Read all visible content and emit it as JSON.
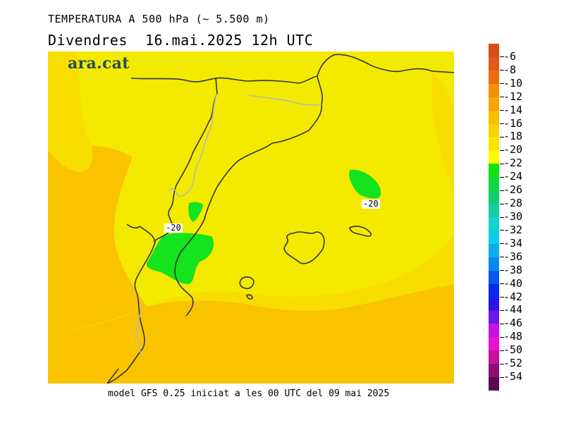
{
  "header": {
    "title": "TEMPERATURA A 500 hPa (~ 5.500 m)",
    "subtitle": "Divendres  16.mai.2025 12h UTC"
  },
  "map": {
    "logo": "ara.cat",
    "contour_labels": [
      "-20",
      "-20"
    ]
  },
  "footer": {
    "model_info": "model GFS 0.25 iniciat a les 00 UTC del 09 mai 2025"
  },
  "colors": {
    "orange_zone": "#f9c300",
    "yellow_light": "#f4ea00",
    "yellow_dark": "#f8de00",
    "green_zone": "#13e41e",
    "coastline": "#333333",
    "border": "#b9b9b9"
  },
  "legend": {
    "entries": [
      {
        "label": "-6",
        "color": "#e0581a"
      },
      {
        "label": "-8",
        "color": "#e86e10"
      },
      {
        "label": "-10",
        "color": "#f19006"
      },
      {
        "label": "-12",
        "color": "#f7a500"
      },
      {
        "label": "-14",
        "color": "#f9bd00"
      },
      {
        "label": "-16",
        "color": "#f8d200"
      },
      {
        "label": "-18",
        "color": "#f7e600"
      },
      {
        "label": "-20",
        "color": "#fcfc00"
      },
      {
        "label": "-22",
        "color": "#12e212"
      },
      {
        "label": "-24",
        "color": "#10d83c"
      },
      {
        "label": "-26",
        "color": "#12cf6e"
      },
      {
        "label": "-28",
        "color": "#17cca0"
      },
      {
        "label": "-30",
        "color": "#12d6cc"
      },
      {
        "label": "-32",
        "color": "#07cfec"
      },
      {
        "label": "-34",
        "color": "#0aaeec"
      },
      {
        "label": "-36",
        "color": "#0a88ee"
      },
      {
        "label": "-38",
        "color": "#0657ee"
      },
      {
        "label": "-40",
        "color": "#0a2af0"
      },
      {
        "label": "-42",
        "color": "#2a14e8"
      },
      {
        "label": "-44",
        "color": "#6c18e6"
      },
      {
        "label": "-46",
        "color": "#c412e4"
      },
      {
        "label": "-48",
        "color": "#ea12d2"
      },
      {
        "label": "-50",
        "color": "#c8109c"
      },
      {
        "label": "-52",
        "color": "#8c0e72"
      },
      {
        "label": "-54",
        "color": "#5a0c4e"
      }
    ],
    "top_color": "#d84c1a"
  }
}
